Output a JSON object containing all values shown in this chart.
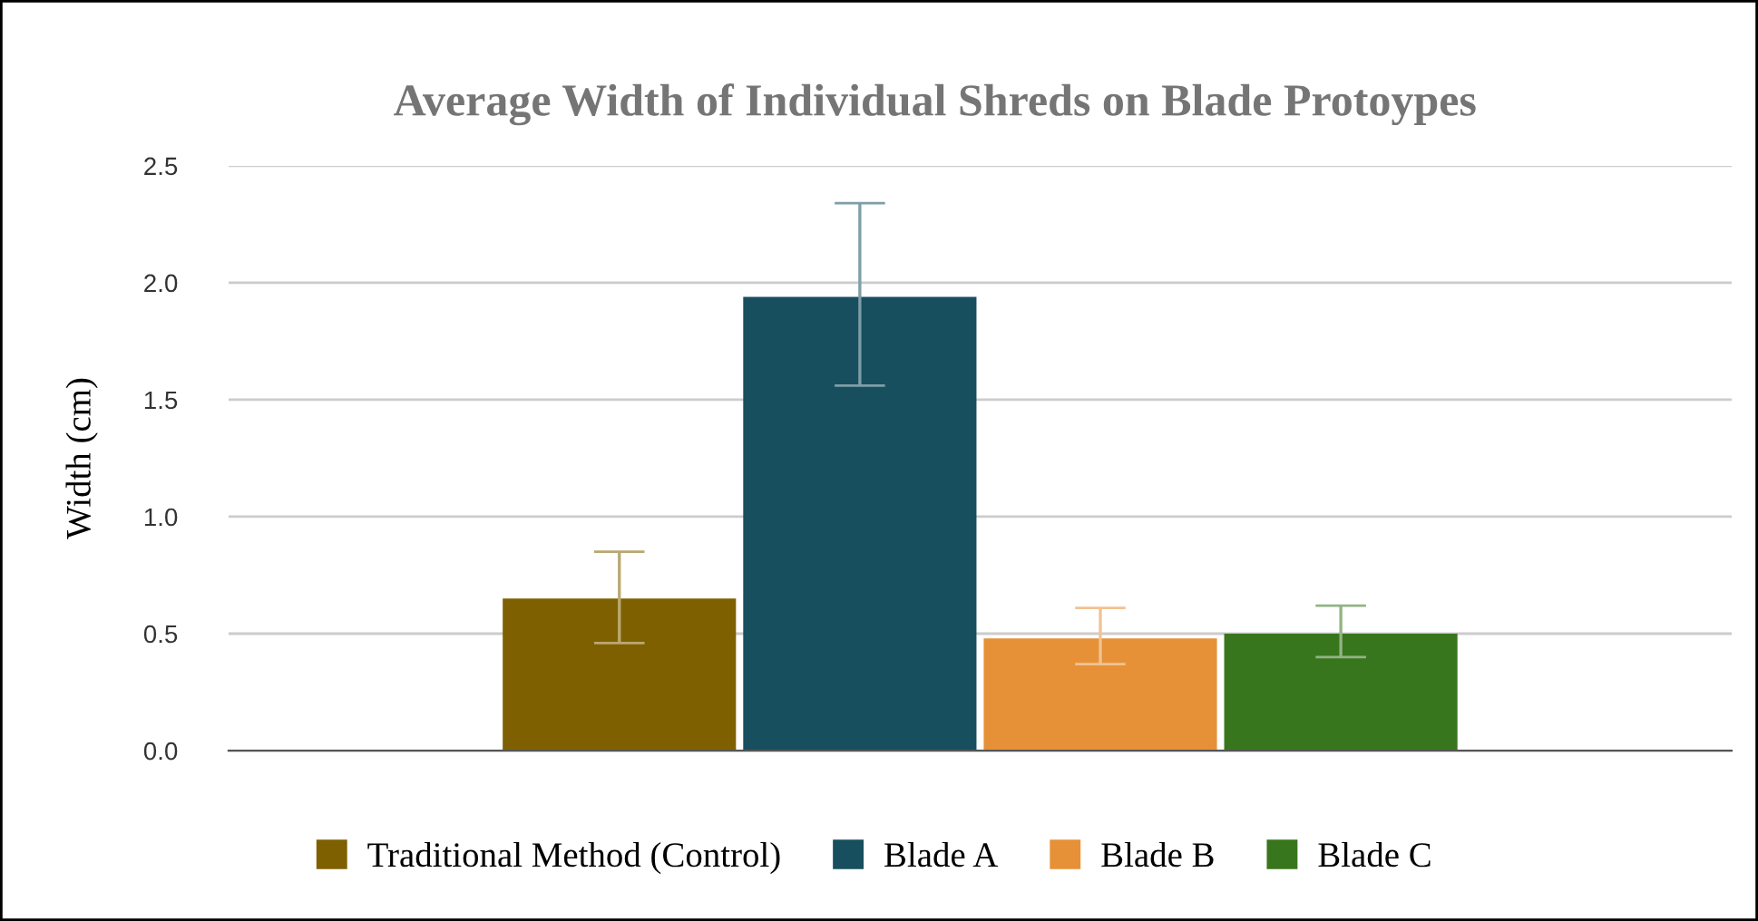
{
  "chart_data": {
    "type": "bar",
    "title": "Average Width of Individual Shreds on Blade Protoypes",
    "ylabel": "Width (cm)",
    "categories": [
      null
    ],
    "series": [
      {
        "name": "Traditional Method (Control)",
        "color": "#7f6000",
        "values": [
          0.65
        ],
        "errors": [
          [
            0.46,
            0.85
          ]
        ]
      },
      {
        "name": "Blade A",
        "color": "#174f5f",
        "values": [
          1.94
        ],
        "errors": [
          [
            1.56,
            2.34
          ]
        ]
      },
      {
        "name": "Blade B",
        "color": "#e69138",
        "values": [
          0.48
        ],
        "errors": [
          [
            0.37,
            0.61
          ]
        ]
      },
      {
        "name": "Blade C",
        "color": "#38761d",
        "values": [
          0.5
        ],
        "errors": [
          [
            0.4,
            0.62
          ]
        ]
      }
    ],
    "ylim": [
      0,
      2.5
    ],
    "yticks": [
      {
        "value": 0,
        "label": "0.0"
      },
      {
        "value": 0.5,
        "label": "0.5"
      },
      {
        "value": 1,
        "label": "1.0"
      },
      {
        "value": 1.5,
        "label": "1.5"
      },
      {
        "value": 2,
        "label": "2.0"
      },
      {
        "value": 2.5,
        "label": "2.5"
      }
    ],
    "grid": "y",
    "legend": "bottom"
  }
}
